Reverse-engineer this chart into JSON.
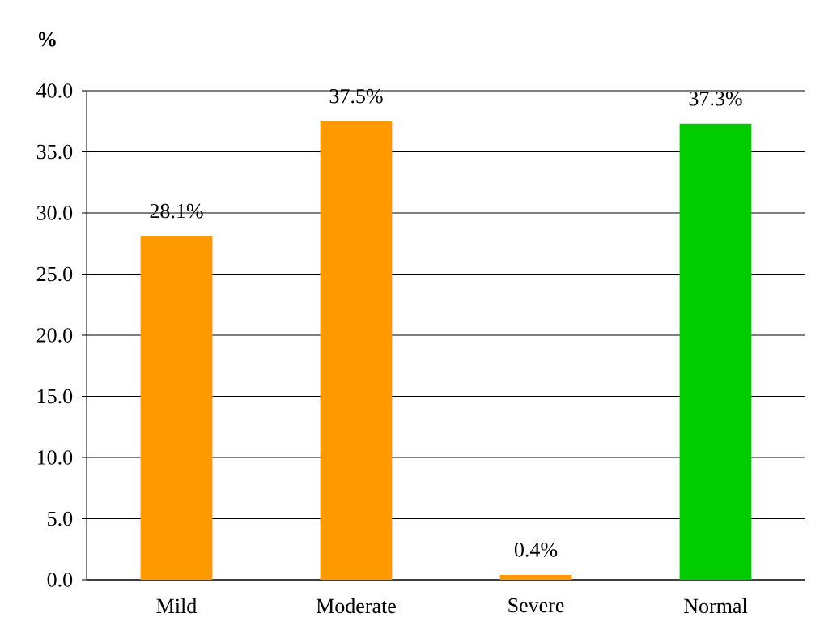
{
  "chart_data": {
    "type": "bar",
    "ylabel": "%",
    "categories": [
      "Mild",
      "Moderate",
      "Severe",
      "Normal"
    ],
    "values": [
      28.1,
      37.5,
      0.4,
      37.3
    ],
    "colors": [
      "#ff9900",
      "#ff9900",
      "#ff9900",
      "#00cc00"
    ],
    "value_labels": [
      "28.1%",
      "37.5%",
      "0.4%",
      "37.3%"
    ],
    "ylim": [
      0,
      40
    ],
    "yticks": [
      {
        "value": 0,
        "label": "0.0"
      },
      {
        "value": 5,
        "label": "5.0"
      },
      {
        "value": 10,
        "label": "10.0"
      },
      {
        "value": 15,
        "label": "15.0"
      },
      {
        "value": 20,
        "label": "20.0"
      },
      {
        "value": 25,
        "label": "25.0"
      },
      {
        "value": 30,
        "label": "30.0"
      },
      {
        "value": 35,
        "label": "35.0"
      },
      {
        "value": 40,
        "label": "40.0"
      }
    ],
    "grid": "y"
  }
}
